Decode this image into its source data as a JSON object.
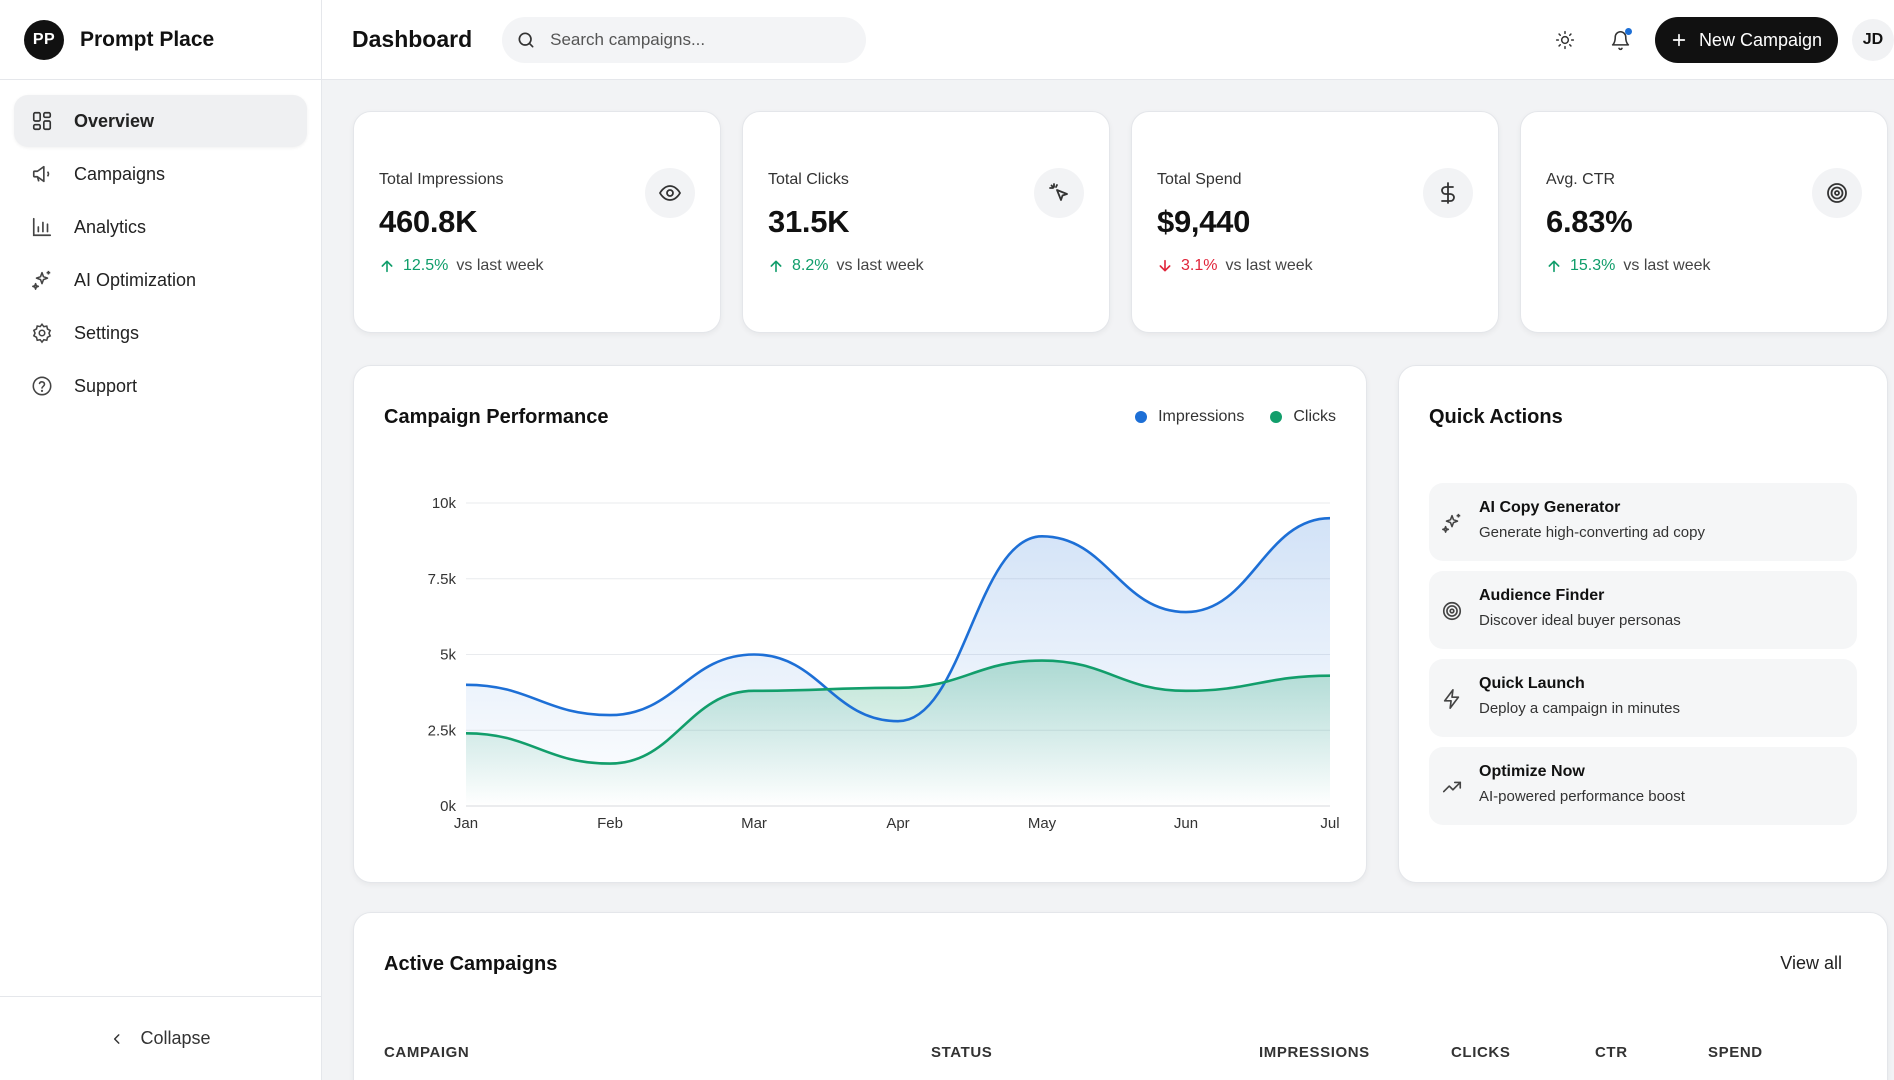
{
  "brand": {
    "initials": "PP",
    "name": "Prompt Place"
  },
  "sidebar": {
    "items": [
      {
        "label": "Overview",
        "icon": "grid-icon",
        "active": true
      },
      {
        "label": "Campaigns",
        "icon": "megaphone-icon"
      },
      {
        "label": "Analytics",
        "icon": "bar-chart-icon"
      },
      {
        "label": "AI Optimization",
        "icon": "sparkles-icon"
      },
      {
        "label": "Settings",
        "icon": "gear-icon"
      },
      {
        "label": "Support",
        "icon": "help-circle-icon"
      }
    ],
    "collapse_label": "Collapse"
  },
  "header": {
    "title": "Dashboard",
    "search_placeholder": "Search campaigns...",
    "new_button": "New Campaign",
    "avatar": "JD"
  },
  "stats": [
    {
      "label": "Total Impressions",
      "value": "460.8K",
      "change": "12.5%",
      "direction": "up",
      "suffix": "vs last week",
      "icon": "eye-icon"
    },
    {
      "label": "Total Clicks",
      "value": "31.5K",
      "change": "8.2%",
      "direction": "up",
      "suffix": "vs last week",
      "icon": "cursor-click-icon"
    },
    {
      "label": "Total Spend",
      "value": "$9,440",
      "change": "3.1%",
      "direction": "down",
      "suffix": "vs last week",
      "icon": "dollar-icon"
    },
    {
      "label": "Avg. CTR",
      "value": "6.83%",
      "change": "15.3%",
      "direction": "up",
      "suffix": "vs last week",
      "icon": "target-icon"
    }
  ],
  "performance": {
    "title": "Campaign Performance"
  },
  "chart_data": {
    "type": "area",
    "x": [
      "Jan",
      "Feb",
      "Mar",
      "Apr",
      "May",
      "Jun",
      "Jul"
    ],
    "series": [
      {
        "name": "Impressions",
        "values": [
          4000,
          3000,
          5000,
          2800,
          8900,
          6400,
          9500
        ],
        "color": "#1d6fd6"
      },
      {
        "name": "Clicks",
        "values": [
          2400,
          1400,
          3800,
          3900,
          4800,
          3800,
          4300
        ],
        "color": "#129e6b"
      }
    ],
    "yticks": [
      "0k",
      "2.5k",
      "5k",
      "7.5k",
      "10k"
    ],
    "ylim": [
      0,
      10000
    ],
    "grid": true,
    "legend": "top-right"
  },
  "quick_actions": {
    "title": "Quick Actions",
    "items": [
      {
        "title": "AI Copy Generator",
        "desc": "Generate high-converting ad copy",
        "icon": "sparkles-icon"
      },
      {
        "title": "Audience Finder",
        "desc": "Discover ideal buyer personas",
        "icon": "target-icon"
      },
      {
        "title": "Quick Launch",
        "desc": "Deploy a campaign in minutes",
        "icon": "lightning-icon"
      },
      {
        "title": "Optimize Now",
        "desc": "AI-powered performance boost",
        "icon": "trending-up-icon"
      }
    ]
  },
  "campaigns": {
    "title": "Active Campaigns",
    "view_all": "View all",
    "columns": [
      "CAMPAIGN",
      "STATUS",
      "IMPRESSIONS",
      "CLICKS",
      "CTR",
      "SPEND"
    ]
  }
}
